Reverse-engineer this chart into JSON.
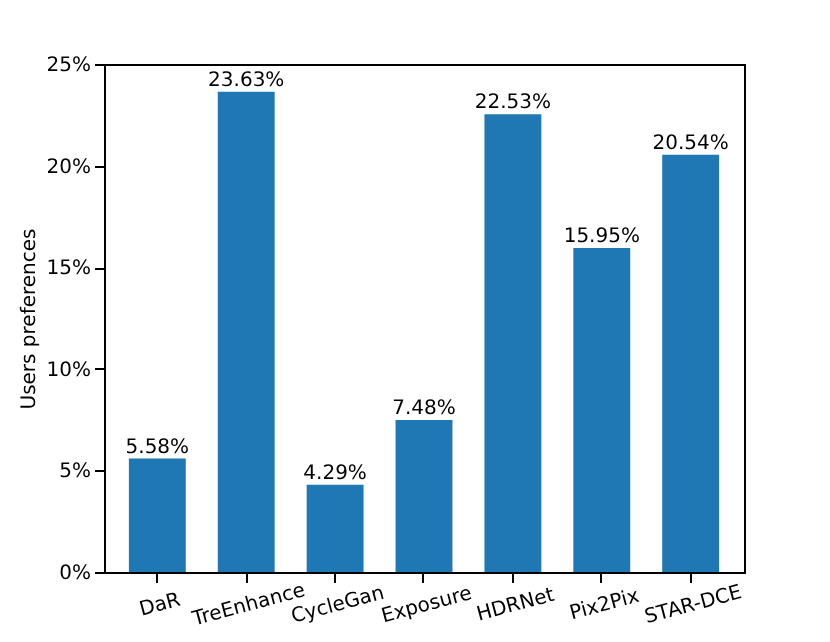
{
  "chart_data": {
    "type": "bar",
    "ylabel": "Users preferences",
    "categories": [
      "DaR",
      "TreEnhance",
      "CycleGan",
      "Exposure",
      "HDRNet",
      "Pix2Pix",
      "STAR-DCE"
    ],
    "values": [
      5.58,
      23.63,
      4.29,
      7.48,
      22.53,
      15.95,
      20.54
    ],
    "value_labels": [
      "5.58%",
      "23.63%",
      "4.29%",
      "7.48%",
      "22.53%",
      "15.95%",
      "20.54%"
    ],
    "color": "#1f77b4",
    "ylim": [
      0,
      25
    ],
    "yticks": [
      {
        "value": 0,
        "label": "0%"
      },
      {
        "value": 5,
        "label": "5%"
      },
      {
        "value": 10,
        "label": "10%"
      },
      {
        "value": 15,
        "label": "15%"
      },
      {
        "value": 20,
        "label": "20%"
      },
      {
        "value": 25,
        "label": "25%"
      }
    ],
    "grid": false
  }
}
